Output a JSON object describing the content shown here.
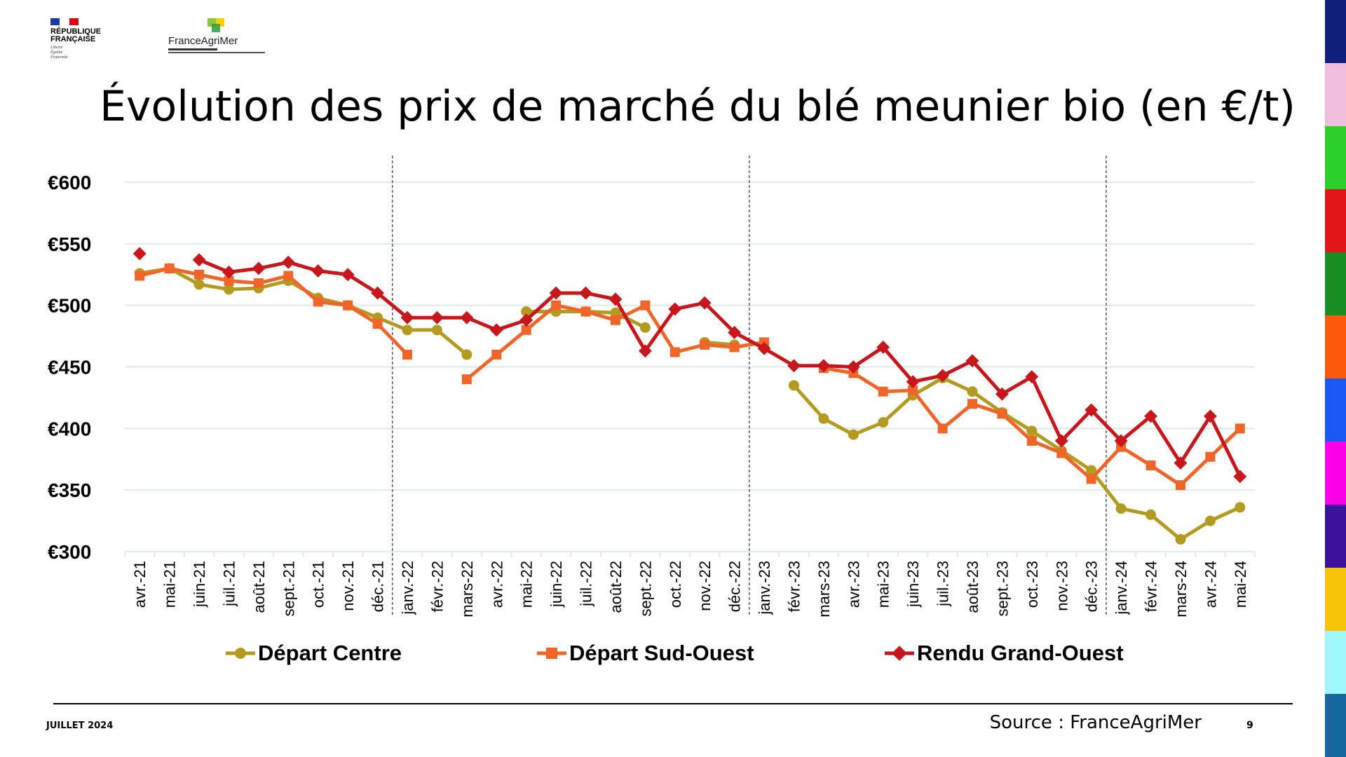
{
  "header": {
    "republique_label": "RÉPUBLIQUE FRANÇAISE",
    "republique_motto": [
      "Liberté",
      "Égalité",
      "Fraternité"
    ],
    "logo_name": "FranceAgriMer"
  },
  "title": "Évolution des prix de marché du blé meunier bio (en €/t)",
  "chart_data": {
    "type": "line",
    "categories": [
      "avr.-21",
      "mai-21",
      "juin-21",
      "juil.-21",
      "août-21",
      "sept.-21",
      "oct.-21",
      "nov.-21",
      "déc.-21",
      "janv.-22",
      "févr.-22",
      "mars-22",
      "avr.-22",
      "mai-22",
      "juin-22",
      "juil.-22",
      "août-22",
      "sept.-22",
      "oct.-22",
      "nov.-22",
      "déc.-22",
      "janv.-23",
      "févr.-23",
      "mars-23",
      "avr.-23",
      "mai-23",
      "juin-23",
      "juil.-23",
      "août-23",
      "sept.-23",
      "oct.-23",
      "nov.-23",
      "déc.-23",
      "janv.-24",
      "févr.-24",
      "mars-24",
      "avr.-24",
      "mai-24"
    ],
    "yticks": [
      {
        "value": 300,
        "label": "€300"
      },
      {
        "value": 350,
        "label": "€350"
      },
      {
        "value": 400,
        "label": "€400"
      },
      {
        "value": 450,
        "label": "€450"
      },
      {
        "value": 500,
        "label": "€500"
      },
      {
        "value": 550,
        "label": "€550"
      },
      {
        "value": 600,
        "label": "€600"
      }
    ],
    "ylim": [
      300,
      600
    ],
    "year_dividers_after": [
      "déc.-21",
      "déc.-22",
      "déc.-23"
    ],
    "grid": true,
    "legend_position": "bottom",
    "series": [
      {
        "name": "Départ Centre",
        "color": "#B39B21",
        "marker": "circle",
        "values": [
          526,
          530,
          517,
          513,
          514,
          520,
          506,
          500,
          490,
          480,
          480,
          460,
          null,
          495,
          495,
          495,
          494,
          482,
          null,
          470,
          468,
          null,
          435,
          408,
          395,
          405,
          427,
          441,
          430,
          413,
          398,
          382,
          366,
          335,
          330,
          310,
          325,
          336
        ]
      },
      {
        "name": "Départ Sud-Ouest",
        "color": "#F0662A",
        "marker": "square",
        "values": [
          524,
          530,
          525,
          520,
          518,
          524,
          503,
          500,
          485,
          460,
          null,
          440,
          460,
          480,
          500,
          495,
          488,
          500,
          462,
          468,
          466,
          470,
          null,
          449,
          445,
          430,
          431,
          400,
          420,
          412,
          390,
          380,
          359,
          385,
          370,
          354,
          377,
          400
        ]
      },
      {
        "name": "Rendu Grand-Ouest",
        "color": "#C8161D",
        "marker": "diamond",
        "values": [
          542,
          null,
          537,
          527,
          530,
          535,
          528,
          525,
          510,
          490,
          490,
          490,
          480,
          488,
          510,
          510,
          505,
          463,
          497,
          502,
          478,
          465,
          451,
          451,
          450,
          466,
          438,
          443,
          455,
          428,
          442,
          390,
          415,
          390,
          410,
          372,
          410,
          361
        ]
      }
    ]
  },
  "footer": {
    "date": "JUILLET 2024",
    "source": "Source :  FranceAgriMer",
    "page": "9"
  },
  "side_strip_colors": [
    "#0F1F7A",
    "#F1BFDB",
    "#2BD02B",
    "#E2141A",
    "#178E22",
    "#FF5A0C",
    "#1A58F3",
    "#FA00E6",
    "#3A129A",
    "#F7C306",
    "#9FF6FB",
    "#16679E"
  ]
}
